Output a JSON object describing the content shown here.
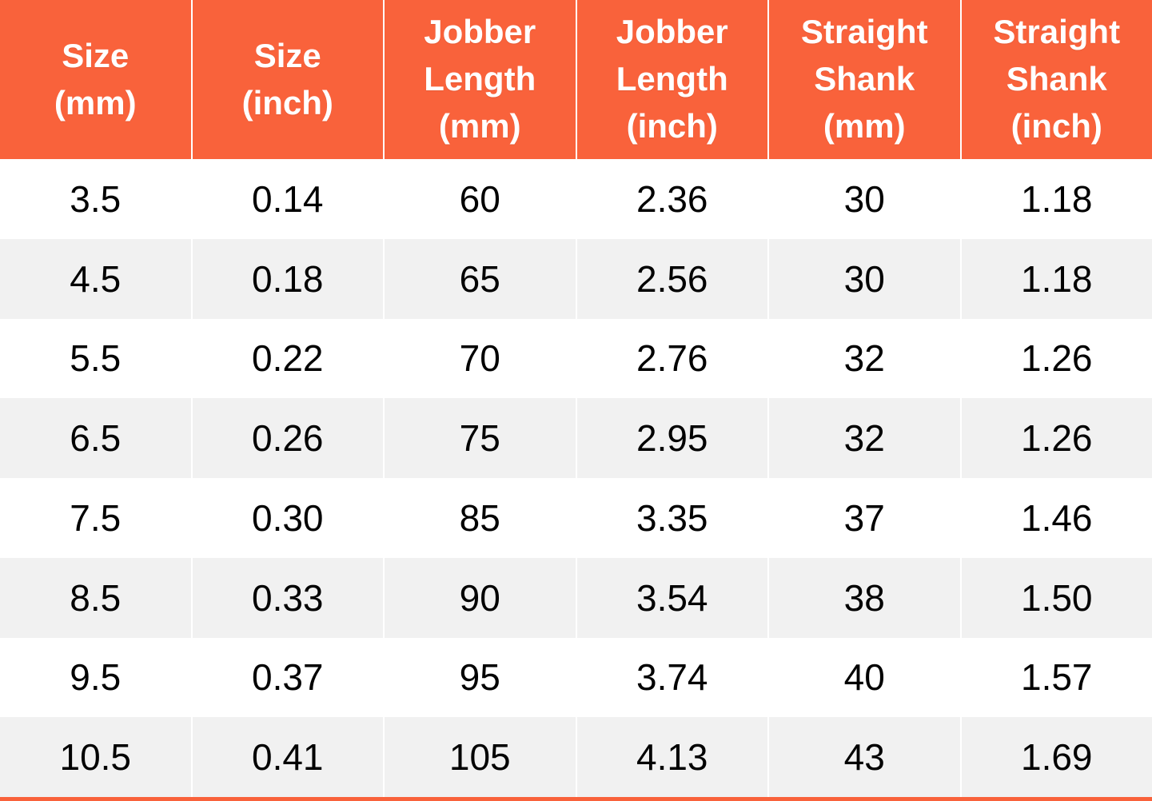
{
  "colors": {
    "header_bg": "#f9623b",
    "header_text": "#ffffff",
    "row_bg": "#ffffff",
    "row_alt_bg": "#f1f1f1",
    "cell_text": "#000000",
    "bottom_border": "#f9623b"
  },
  "table": {
    "columns": [
      {
        "id": "size-mm",
        "lines": [
          "Size",
          "(mm)"
        ]
      },
      {
        "id": "size-inch",
        "lines": [
          "Size",
          "(inch)"
        ]
      },
      {
        "id": "jobber-length-mm",
        "lines": [
          "Jobber",
          "Length",
          "(mm)"
        ]
      },
      {
        "id": "jobber-length-inch",
        "lines": [
          "Jobber",
          "Length",
          "(inch)"
        ]
      },
      {
        "id": "straight-shank-mm",
        "lines": [
          "Straight",
          "Shank",
          "(mm)"
        ]
      },
      {
        "id": "straight-shank-inch",
        "lines": [
          "Straight",
          "Shank",
          "(inch)"
        ]
      }
    ],
    "rows": [
      {
        "cells": [
          "3.5",
          "0.14",
          "60",
          "2.36",
          "30",
          "1.18"
        ]
      },
      {
        "cells": [
          "4.5",
          "0.18",
          "65",
          "2.56",
          "30",
          "1.18"
        ]
      },
      {
        "cells": [
          "5.5",
          "0.22",
          "70",
          "2.76",
          "32",
          "1.26"
        ]
      },
      {
        "cells": [
          "6.5",
          "0.26",
          "75",
          "2.95",
          "32",
          "1.26"
        ]
      },
      {
        "cells": [
          "7.5",
          "0.30",
          "85",
          "3.35",
          "37",
          "1.46"
        ]
      },
      {
        "cells": [
          "8.5",
          "0.33",
          "90",
          "3.54",
          "38",
          "1.50"
        ]
      },
      {
        "cells": [
          "9.5",
          "0.37",
          "95",
          "3.74",
          "40",
          "1.57"
        ]
      },
      {
        "cells": [
          "10.5",
          "0.41",
          "105",
          "4.13",
          "43",
          "1.69"
        ]
      }
    ]
  },
  "chart_data": {
    "type": "table",
    "title": "",
    "columns": [
      "Size (mm)",
      "Size (inch)",
      "Jobber Length (mm)",
      "Jobber Length (inch)",
      "Straight Shank (mm)",
      "Straight Shank (inch)"
    ],
    "rows": [
      [
        3.5,
        0.14,
        60,
        2.36,
        30,
        1.18
      ],
      [
        4.5,
        0.18,
        65,
        2.56,
        30,
        1.18
      ],
      [
        5.5,
        0.22,
        70,
        2.76,
        32,
        1.26
      ],
      [
        6.5,
        0.26,
        75,
        2.95,
        32,
        1.26
      ],
      [
        7.5,
        0.3,
        85,
        3.35,
        37,
        1.46
      ],
      [
        8.5,
        0.33,
        90,
        3.54,
        38,
        1.5
      ],
      [
        9.5,
        0.37,
        95,
        3.74,
        40,
        1.57
      ],
      [
        10.5,
        0.41,
        105,
        4.13,
        43,
        1.69
      ]
    ]
  }
}
